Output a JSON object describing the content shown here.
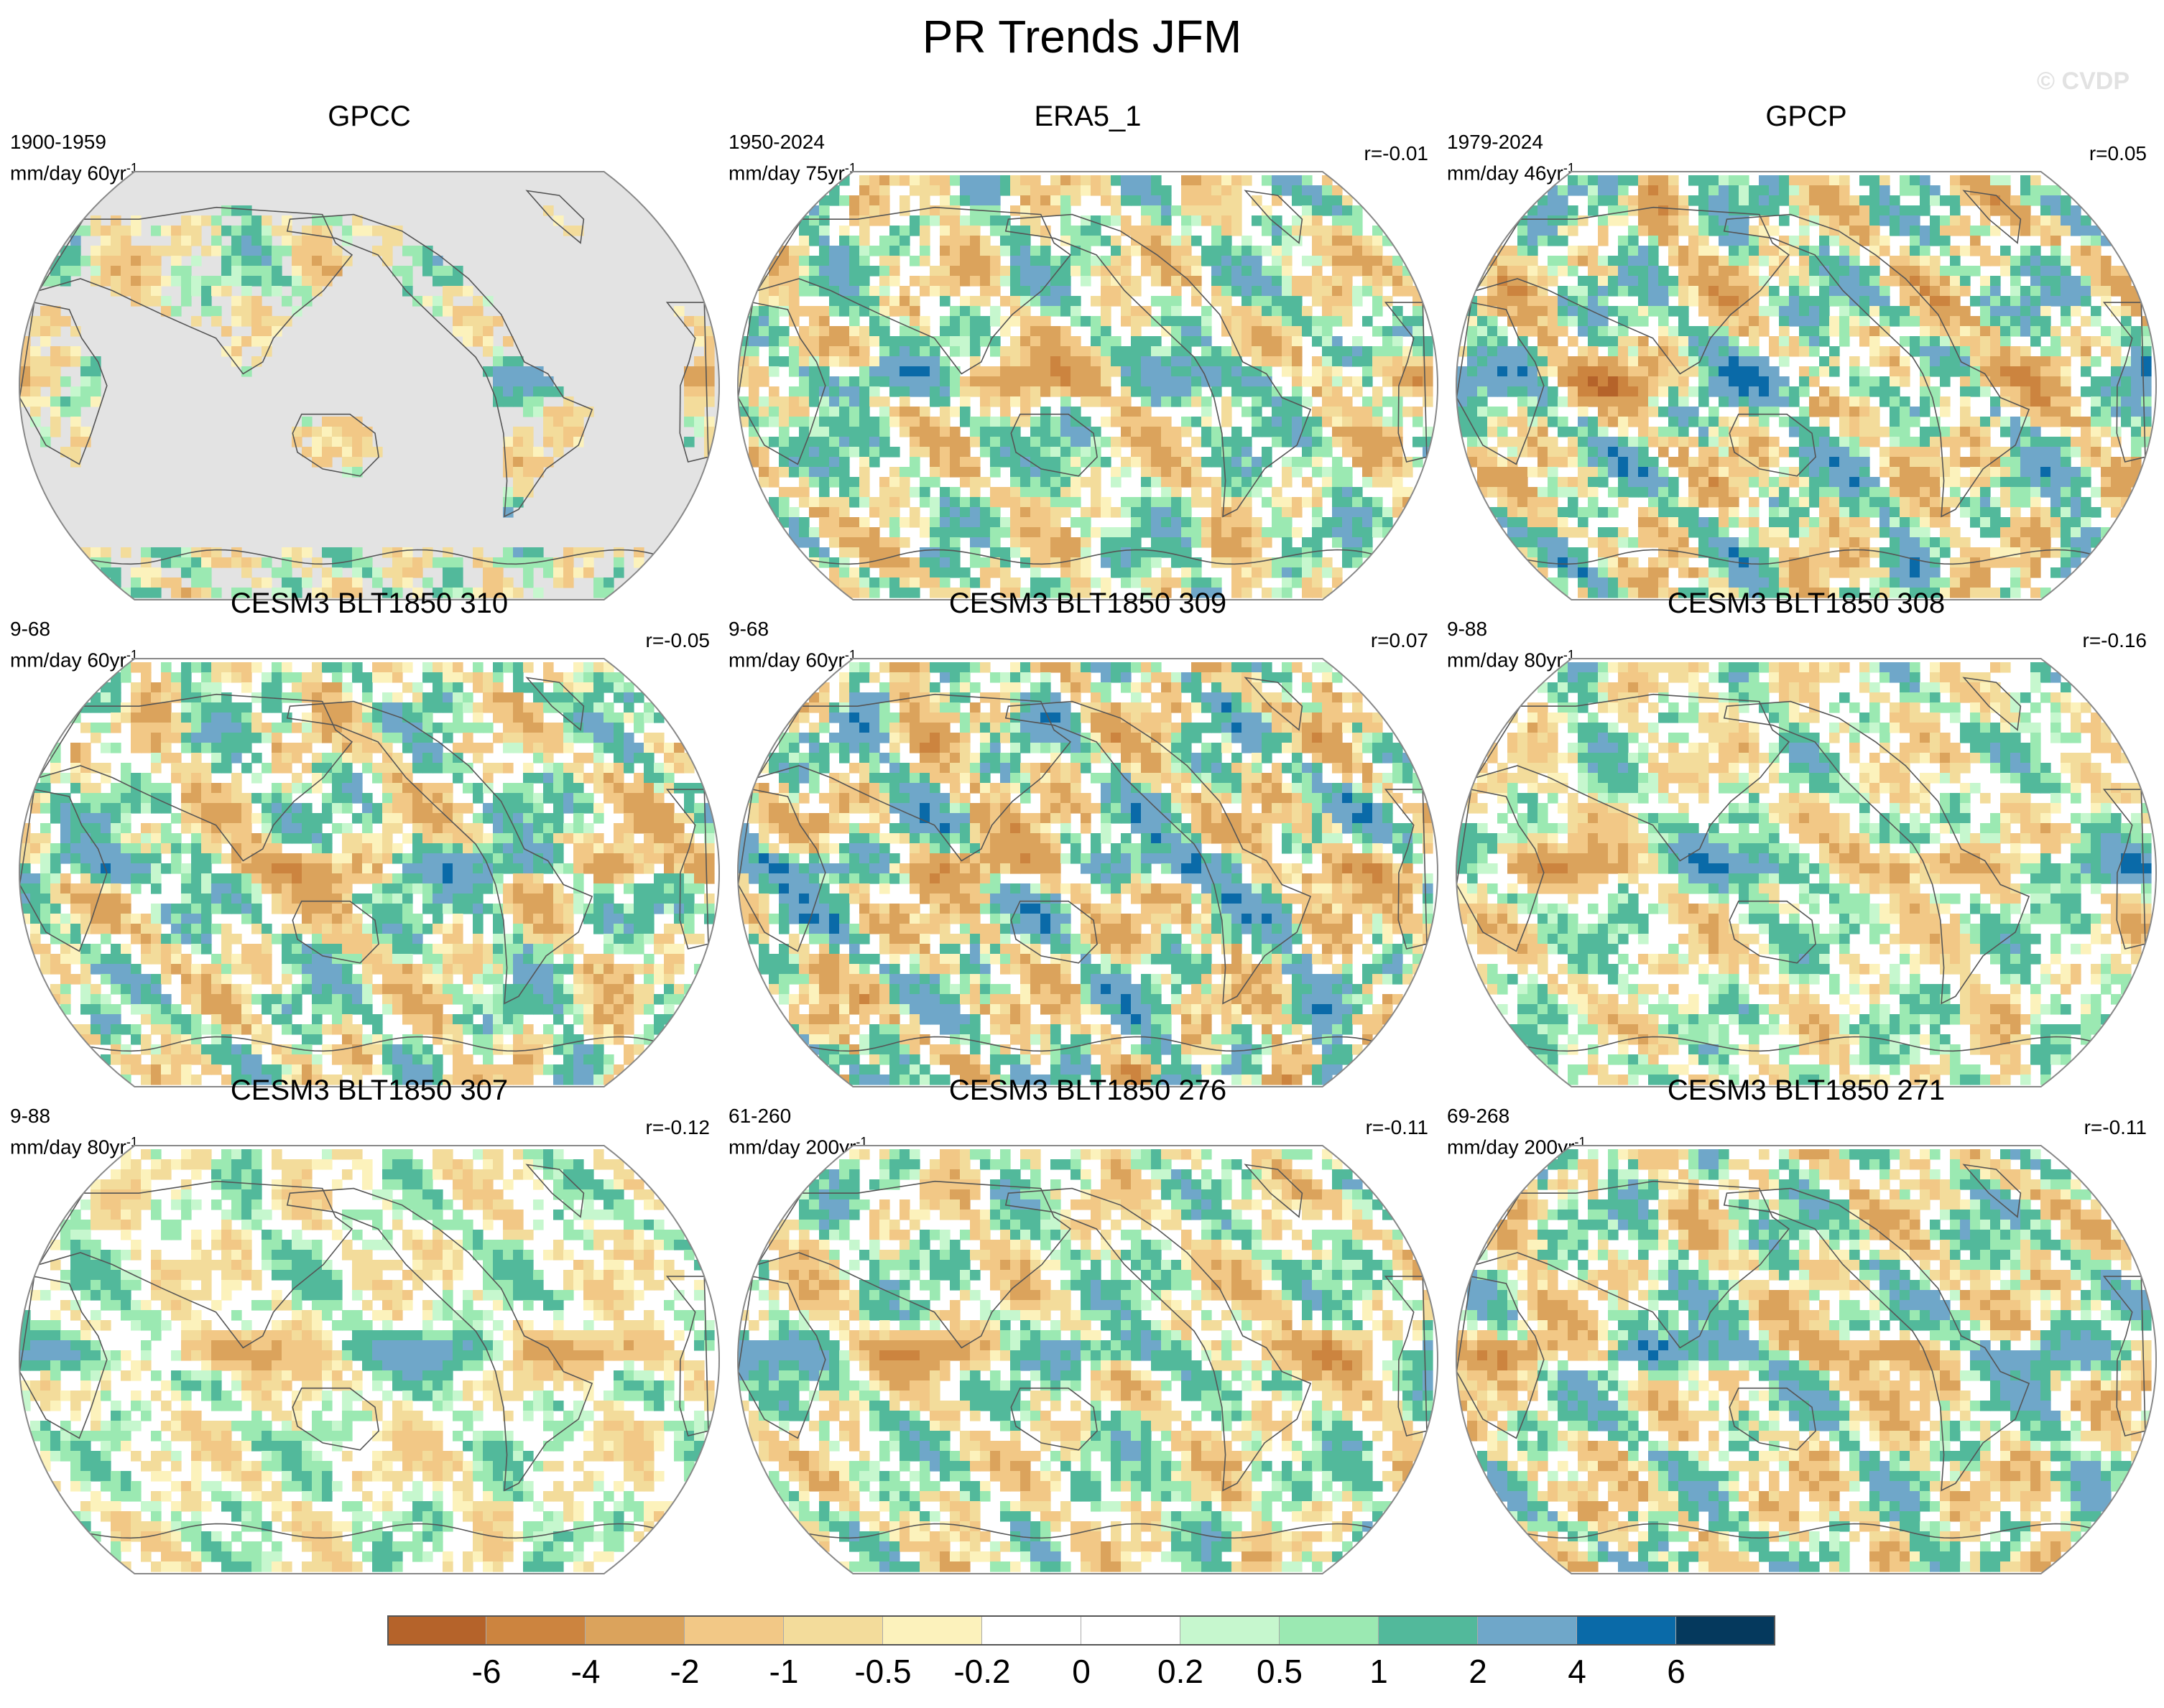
{
  "title": "PR Trends JFM",
  "watermark": "© CVDP",
  "colors": {
    "levels": [
      "#b5632a",
      "#cc843f",
      "#dba35c",
      "#f2c886",
      "#f3dc9b",
      "#fcf2bc",
      "#ffffff",
      "#ffffff",
      "#c6f7ce",
      "#9be9b2",
      "#52b99b",
      "#6fa7c9",
      "#0a6aa8",
      "#05395d"
    ],
    "land_mask": "#e3e3e3",
    "coast": "#555555",
    "outline": "#888888"
  },
  "chart_data": {
    "type": "heatmap",
    "projection": "Robinson (Pacific-centered)",
    "variable": "Precipitation trend",
    "season": "JFM",
    "colorbar": {
      "levels": [
        "-6",
        "-4",
        "-2",
        "-1",
        "-0.5",
        "-0.2",
        "0",
        "0.2",
        "0.5",
        "1",
        "2",
        "4",
        "6"
      ]
    },
    "panels": [
      {
        "title": "GPCC",
        "period": "1900-1959",
        "units": "mm/day 60yr",
        "units_exp": "-1",
        "corr": "",
        "land_only": true,
        "seed": 11
      },
      {
        "title": "ERA5_1",
        "period": "1950-2024",
        "units": "mm/day 75yr",
        "units_exp": "-1",
        "corr": "r=-0.01",
        "land_only": false,
        "seed": 23
      },
      {
        "title": "GPCP",
        "period": "1979-2024",
        "units": "mm/day 46yr",
        "units_exp": "-1",
        "corr": "r=0.05",
        "land_only": false,
        "seed": 37
      },
      {
        "title": "CESM3 BLT1850 310",
        "period": "9-68",
        "units": "mm/day 60yr",
        "units_exp": "-1",
        "corr": "r=-0.05",
        "land_only": false,
        "seed": 41
      },
      {
        "title": "CESM3 BLT1850 309",
        "period": "9-68",
        "units": "mm/day 60yr",
        "units_exp": "-1",
        "corr": "r=0.07",
        "land_only": false,
        "seed": 53
      },
      {
        "title": "CESM3 BLT1850 308",
        "period": "9-88",
        "units": "mm/day 80yr",
        "units_exp": "-1",
        "corr": "r=-0.16",
        "land_only": false,
        "seed": 67
      },
      {
        "title": "CESM3 BLT1850 307",
        "period": "9-88",
        "units": "mm/day 80yr",
        "units_exp": "-1",
        "corr": "r=-0.12",
        "land_only": false,
        "seed": 71
      },
      {
        "title": "CESM3 BLT1850 276",
        "period": "61-260",
        "units": "mm/day 200yr",
        "units_exp": "-1",
        "corr": "r=-0.11",
        "land_only": false,
        "seed": 83
      },
      {
        "title": "CESM3 BLT1850 271",
        "period": "69-268",
        "units": "mm/day 200yr",
        "units_exp": "-1",
        "corr": "r=-0.11",
        "land_only": false,
        "seed": 97
      }
    ]
  }
}
